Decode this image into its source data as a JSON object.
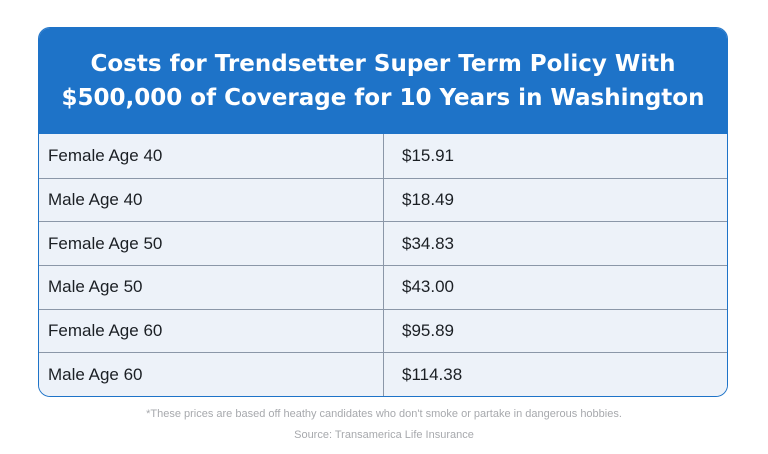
{
  "table": {
    "title_line1": "Costs for Trendsetter Super Term Policy With",
    "title_line2": "$500,000 of Coverage for 10 Years in Washington",
    "rows": [
      {
        "label": "Female Age 40",
        "value": "$15.91"
      },
      {
        "label": "Male Age 40",
        "value": "$18.49"
      },
      {
        "label": "Female Age 50",
        "value": "$34.83"
      },
      {
        "label": "Male Age 50",
        "value": "$43.00"
      },
      {
        "label": "Female Age 60",
        "value": "$95.89"
      },
      {
        "label": "Male Age 60",
        "value": "$114.38"
      }
    ]
  },
  "footer": {
    "disclaimer": "*These prices are based off heathy candidates who don't smoke or partake in dangerous hobbies.",
    "source": "Source: Transamerica Life Insurance"
  },
  "colors": {
    "header_bg": "#1e73c8",
    "row_bg": "#edf2f9",
    "border": "#8b97a8",
    "note_text": "#a7a9ad"
  }
}
